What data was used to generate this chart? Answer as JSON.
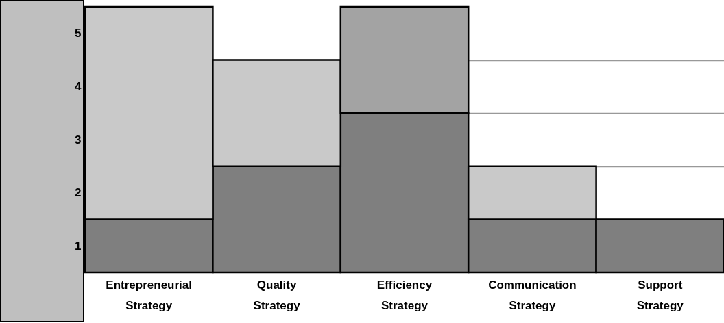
{
  "chart_data": {
    "type": "bar",
    "stacked": true,
    "categories": [
      "Entrepreneurial Strategy",
      "Quality Strategy",
      "Efficiency Strategy",
      "Communication Strategy",
      "Support Strategy"
    ],
    "series": [
      {
        "color": "#7f7f7f",
        "values": [
          1,
          2,
          3,
          1,
          1
        ]
      },
      {
        "color": "#c9c9c9",
        "values": [
          4,
          2,
          null,
          1,
          null
        ]
      },
      {
        "color": "#a3a3a3",
        "values": [
          null,
          null,
          2,
          null,
          null
        ]
      }
    ],
    "ylim": [
      0,
      5
    ],
    "yticks": [
      {
        "value": 0.5,
        "label": "1"
      },
      {
        "value": 1,
        "label": null
      },
      {
        "value": 1.5,
        "label": "2"
      },
      {
        "value": 2,
        "label": null
      },
      {
        "value": 2.5,
        "label": "3"
      },
      {
        "value": 3,
        "label": null
      },
      {
        "value": 3.5,
        "label": "4"
      },
      {
        "value": 4,
        "label": null
      },
      {
        "value": 4.5,
        "label": "5"
      }
    ],
    "grid": true
  }
}
